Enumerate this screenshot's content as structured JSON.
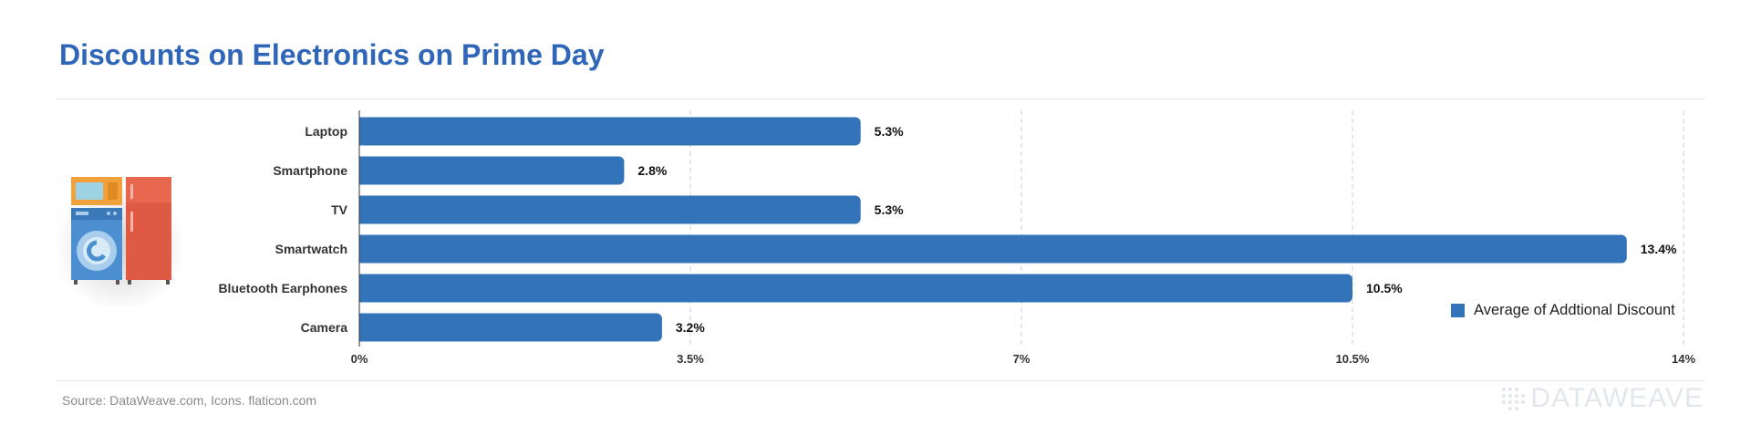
{
  "title": "Discounts on Electronics on Prime Day",
  "source": "Source: DataWeave.com, Icons. flaticon.com",
  "brand": "DATAWEAVE",
  "colors": {
    "title": "#2f66b8",
    "bar": "#3273b9",
    "grid": "#cfcfcf"
  },
  "icons": [
    "appliances-icon"
  ],
  "chart_data": {
    "type": "bar",
    "orientation": "horizontal",
    "categories": [
      "Laptop",
      "Smartphone",
      "TV",
      "Smartwatch",
      "Bluetooth Earphones",
      "Camera"
    ],
    "series": [
      {
        "name": "Average of Addtional Discount",
        "values": [
          5.3,
          2.8,
          5.3,
          13.4,
          10.5,
          3.2
        ],
        "labels": [
          "5.3%",
          "2.8%",
          "5.3%",
          "13.4%",
          "10.5%",
          "3.2%"
        ]
      }
    ],
    "xlim": [
      0,
      14
    ],
    "xticks": [
      0,
      3.5,
      7,
      10.5,
      14
    ],
    "xtick_labels": [
      "0%",
      "3.5%",
      "7%",
      "10.5%",
      "14%"
    ],
    "grid": "vertical dashed",
    "legend_position": "bottom-right"
  }
}
